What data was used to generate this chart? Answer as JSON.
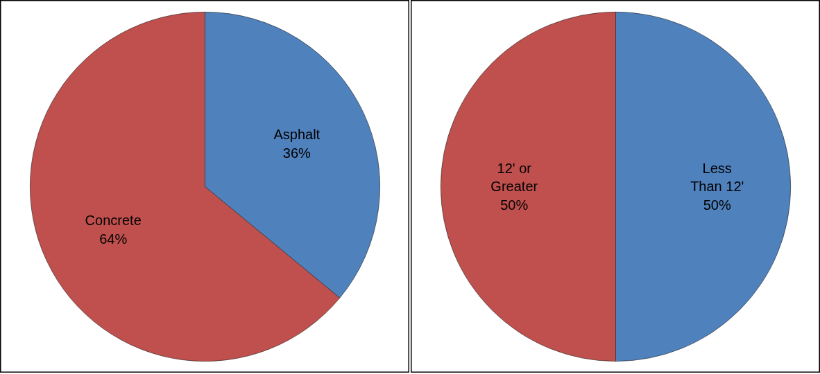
{
  "chart_data": [
    {
      "type": "pie",
      "categories": [
        "Asphalt",
        "Concrete"
      ],
      "values": [
        36,
        64
      ],
      "colors": [
        "#4f81bd",
        "#c0504d"
      ],
      "value_labels": [
        "36%",
        "64%"
      ]
    },
    {
      "type": "pie",
      "categories": [
        "Less Than 12'",
        "12' or Greater"
      ],
      "values": [
        50,
        50
      ],
      "colors": [
        "#4f81bd",
        "#c0504d"
      ],
      "value_labels": [
        "50%",
        "50%"
      ]
    }
  ]
}
